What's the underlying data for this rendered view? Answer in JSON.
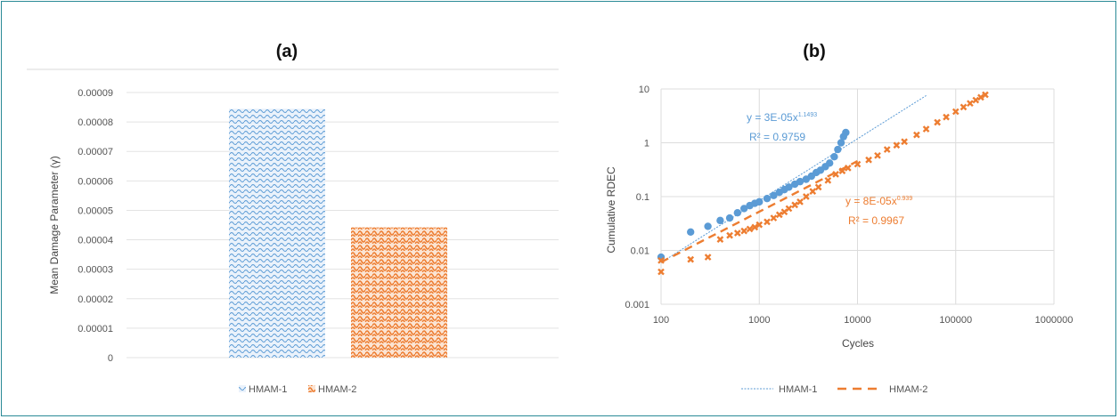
{
  "chart_data": [
    {
      "type": "bar",
      "title": "(a)",
      "ylabel": "Mean Damage Parameter (γ)",
      "xlabel": "",
      "ylim": [
        0,
        9e-05
      ],
      "yticks": [
        "0.00009",
        "0.00008",
        "0.00007",
        "0.00006",
        "0.00005",
        "0.00004",
        "0.00003",
        "0.00002",
        "0.00001",
        "0"
      ],
      "series": [
        {
          "name": "HMAM-1",
          "value": 8.45e-05,
          "color": "#5b9bd5"
        },
        {
          "name": "HMAM-2",
          "value": 4.42e-05,
          "color": "#ed7d31"
        }
      ],
      "legend_position": "bottom",
      "grid": true
    },
    {
      "type": "scatter",
      "title": "(b)",
      "xlabel": "Cycles",
      "ylabel": "Cumulative RDEC",
      "x_scale": "log",
      "y_scale": "log",
      "xlim": [
        100,
        1000000
      ],
      "ylim": [
        0.001,
        10
      ],
      "xticks": [
        "100",
        "1000",
        "10000",
        "100000",
        "1000000"
      ],
      "yticks": [
        "10",
        "1",
        "0.1",
        "0.01",
        "0.001"
      ],
      "series": [
        {
          "name": "HMAM-1",
          "color": "#5b9bd5",
          "points": [
            [
              100,
              0.0075
            ],
            [
              200,
              0.022
            ],
            [
              300,
              0.028
            ],
            [
              400,
              0.036
            ],
            [
              500,
              0.04
            ],
            [
              600,
              0.05
            ],
            [
              700,
              0.06
            ],
            [
              800,
              0.068
            ],
            [
              900,
              0.075
            ],
            [
              1000,
              0.08
            ],
            [
              1200,
              0.092
            ],
            [
              1400,
              0.105
            ],
            [
              1600,
              0.12
            ],
            [
              1800,
              0.135
            ],
            [
              2000,
              0.15
            ],
            [
              2300,
              0.17
            ],
            [
              2600,
              0.19
            ],
            [
              3000,
              0.21
            ],
            [
              3400,
              0.24
            ],
            [
              3800,
              0.28
            ],
            [
              4200,
              0.31
            ],
            [
              4700,
              0.36
            ],
            [
              5200,
              0.42
            ],
            [
              5800,
              0.55
            ],
            [
              6300,
              0.75
            ],
            [
              6800,
              1.0
            ],
            [
              7200,
              1.3
            ],
            [
              7600,
              1.55
            ]
          ],
          "trendline": {
            "type": "power",
            "a": 3e-05,
            "b": 1.1493,
            "x_range": [
              100,
              50000
            ],
            "equation": "y = 3E-05x",
            "exponent": "1.1493",
            "r2": "R² = 0.9759"
          }
        },
        {
          "name": "HMAM-2",
          "color": "#ed7d31",
          "points": [
            [
              100,
              0.004
            ],
            [
              100,
              0.0065
            ],
            [
              200,
              0.0068
            ],
            [
              300,
              0.0075
            ],
            [
              400,
              0.016
            ],
            [
              500,
              0.019
            ],
            [
              600,
              0.021
            ],
            [
              700,
              0.023
            ],
            [
              800,
              0.025
            ],
            [
              900,
              0.027
            ],
            [
              1000,
              0.03
            ],
            [
              1200,
              0.034
            ],
            [
              1400,
              0.04
            ],
            [
              1600,
              0.046
            ],
            [
              1800,
              0.052
            ],
            [
              2000,
              0.06
            ],
            [
              2300,
              0.07
            ],
            [
              2600,
              0.08
            ],
            [
              3000,
              0.1
            ],
            [
              3500,
              0.125
            ],
            [
              4000,
              0.15
            ],
            [
              5000,
              0.2
            ],
            [
              6000,
              0.26
            ],
            [
              7000,
              0.3
            ],
            [
              8000,
              0.34
            ],
            [
              10000,
              0.4
            ],
            [
              13000,
              0.48
            ],
            [
              16000,
              0.58
            ],
            [
              20000,
              0.75
            ],
            [
              25000,
              0.9
            ],
            [
              30000,
              1.05
            ],
            [
              40000,
              1.4
            ],
            [
              50000,
              1.8
            ],
            [
              65000,
              2.4
            ],
            [
              80000,
              3.0
            ],
            [
              100000,
              3.8
            ],
            [
              120000,
              4.6
            ],
            [
              140000,
              5.4
            ],
            [
              160000,
              6.2
            ],
            [
              180000,
              7.0
            ],
            [
              200000,
              7.8
            ]
          ],
          "trendline": {
            "type": "power",
            "a": 8e-05,
            "b": 0.939,
            "x_range": [
              100,
              10000
            ],
            "equation": "y = 8E-05x",
            "exponent": "0.939",
            "r2": "R² = 0.9967"
          }
        }
      ],
      "legend_position": "bottom",
      "grid": true
    }
  ]
}
